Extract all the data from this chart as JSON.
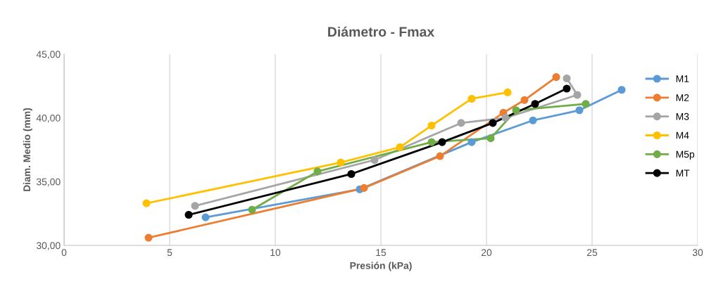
{
  "chart_data": {
    "type": "line",
    "title": "Diámetro - Fmax",
    "xlabel": "Presión (kPa)",
    "ylabel": "Diam. Medio (mm)",
    "xlim": [
      0,
      30
    ],
    "xticks": [
      0,
      5,
      10,
      15,
      20,
      25,
      30
    ],
    "ylim": [
      30,
      45
    ],
    "yticks": [
      {
        "value": 30,
        "label": "30,00"
      },
      {
        "value": 35,
        "label": "35,00"
      },
      {
        "value": 40,
        "label": "40,00"
      },
      {
        "value": 45,
        "label": "45,00"
      }
    ],
    "grid": "x",
    "legend": "right",
    "marker": "circle",
    "line_style": "solid",
    "series": [
      {
        "name": "M1",
        "color": "#5b9bd5",
        "x": [
          6.7,
          14.0,
          19.3,
          22.2,
          24.4,
          26.4
        ],
        "values": [
          32.2,
          34.4,
          38.1,
          39.8,
          40.6,
          42.2
        ]
      },
      {
        "name": "M2",
        "color": "#ed7d31",
        "x": [
          4.0,
          14.2,
          17.8,
          20.8,
          21.8,
          23.3
        ],
        "values": [
          30.6,
          34.5,
          37.0,
          40.4,
          41.4,
          43.2
        ]
      },
      {
        "name": "M3",
        "color": "#a5a5a5",
        "x": [
          6.2,
          14.7,
          18.8,
          20.9,
          24.3,
          23.8
        ],
        "values": [
          33.1,
          36.7,
          39.6,
          40.0,
          41.8,
          43.1
        ]
      },
      {
        "name": "M4",
        "color": "#ffc000",
        "x": [
          3.9,
          13.1,
          15.9,
          17.4,
          19.3,
          21.0
        ],
        "values": [
          33.3,
          36.5,
          37.7,
          39.4,
          41.5,
          42.0
        ]
      },
      {
        "name": "M5p",
        "color": "#70ad47",
        "x": [
          8.9,
          12.0,
          17.4,
          20.2,
          21.4,
          24.7
        ],
        "values": [
          32.8,
          35.8,
          38.1,
          38.4,
          40.6,
          41.1
        ]
      },
      {
        "name": "MT",
        "color": "#000000",
        "x": [
          5.9,
          13.6,
          17.9,
          20.3,
          22.3,
          23.8
        ],
        "values": [
          32.4,
          35.6,
          38.1,
          39.6,
          41.1,
          42.3
        ]
      }
    ]
  }
}
